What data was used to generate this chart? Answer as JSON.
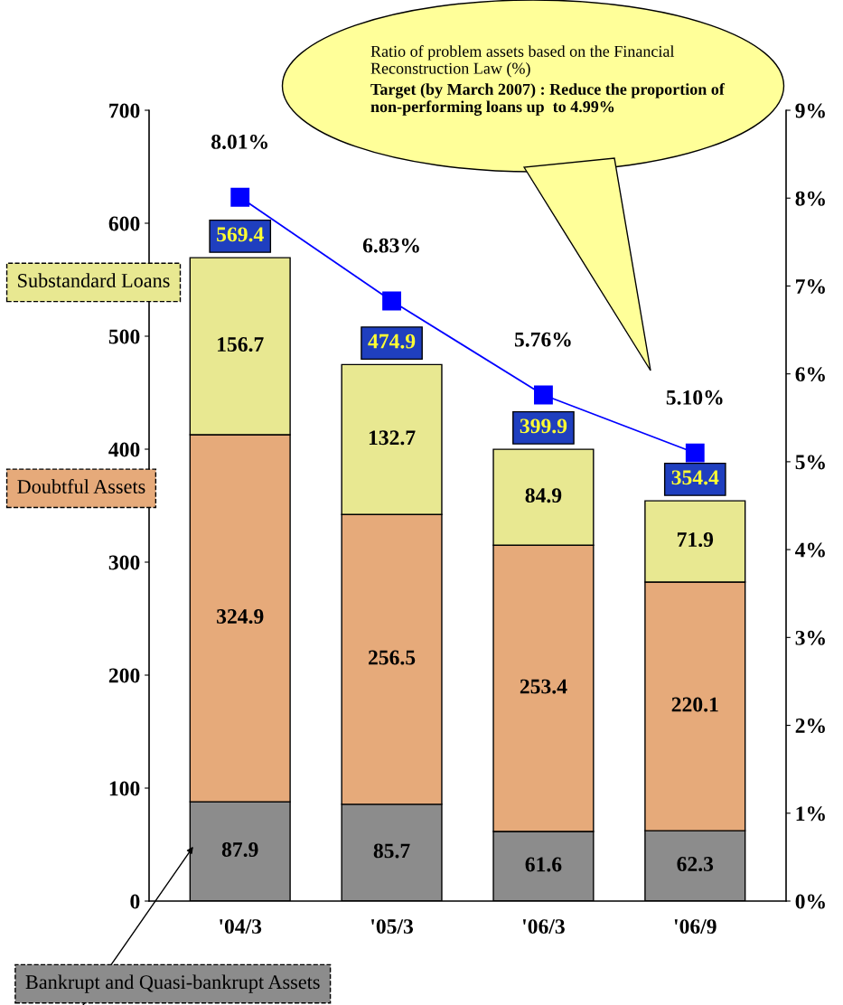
{
  "chart_data": {
    "type": "bar",
    "stacked": true,
    "categories": [
      "'04/3",
      "'05/3",
      "'06/3",
      "'06/9"
    ],
    "series": [
      {
        "name": "Bankrupt and Quasi-bankrupt Assets",
        "color": "#8c8c8c",
        "values": [
          87.9,
          85.7,
          61.6,
          62.3
        ]
      },
      {
        "name": "Doubtful Assets",
        "color": "#e6aa7a",
        "values": [
          324.9,
          256.5,
          253.4,
          220.1
        ]
      },
      {
        "name": "Substandard Loans",
        "color": "#e8e891",
        "values": [
          156.7,
          132.7,
          84.9,
          71.9
        ]
      },
      {
        "type": "line",
        "axis": "y2",
        "color": "#0000ff",
        "marker": "square",
        "values": [
          8.01,
          6.83,
          5.76,
          5.1
        ],
        "value_labels": [
          "8.01%",
          "6.83%",
          "5.76%",
          "5.10%"
        ]
      }
    ],
    "data_labels": true,
    "totals": [
      "569.4",
      "474.9",
      "399.9",
      "354.4"
    ],
    "ylim": [
      0,
      700
    ],
    "yticks": [
      0,
      100,
      200,
      300,
      400,
      500,
      600,
      700
    ],
    "y2lim": [
      0,
      9
    ],
    "y2ticks": [
      {
        "value": 0,
        "label": "0%"
      },
      {
        "value": 1,
        "label": "1%"
      },
      {
        "value": 2,
        "label": "2%"
      },
      {
        "value": 3,
        "label": "3%"
      },
      {
        "value": 4,
        "label": "4%"
      },
      {
        "value": 5,
        "label": "5%"
      },
      {
        "value": 6,
        "label": "6%"
      },
      {
        "value": 7,
        "label": "7%"
      },
      {
        "value": 8,
        "label": "8%"
      },
      {
        "value": 9,
        "label": "9%"
      }
    ],
    "grid": false,
    "legend": false,
    "annotations": [
      "Ratio of problem assets based on the Financial Reconstruction Law (%)",
      "Target (by March 2007) : Reduce the proportion of non-performing loans up  to 4.99%"
    ]
  }
}
